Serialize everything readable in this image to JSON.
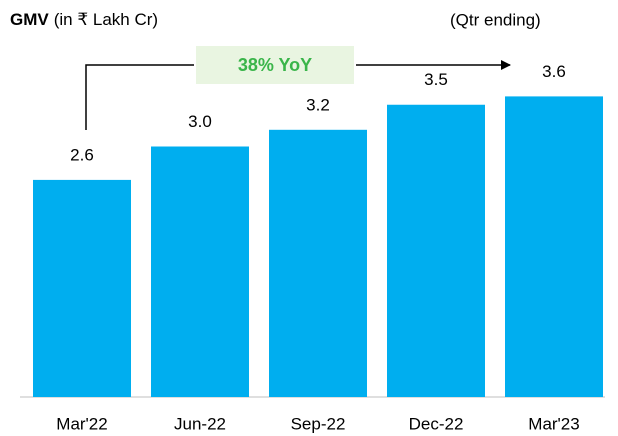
{
  "chart_data": {
    "type": "bar",
    "title": "GMV",
    "subtitle": "(in ₹ Lakh Cr)",
    "note": "(Qtr ending)",
    "annotation": "38% YoY",
    "categories": [
      "Mar'22",
      "Jun-22",
      "Sep-22",
      "Dec-22",
      "Mar'23"
    ],
    "values": [
      2.6,
      3.0,
      3.2,
      3.5,
      3.6
    ],
    "value_labels": [
      "2.6",
      "3.0",
      "3.2",
      "3.5",
      "3.6"
    ],
    "color": "#00aeef",
    "ylim": [
      0,
      4
    ]
  }
}
